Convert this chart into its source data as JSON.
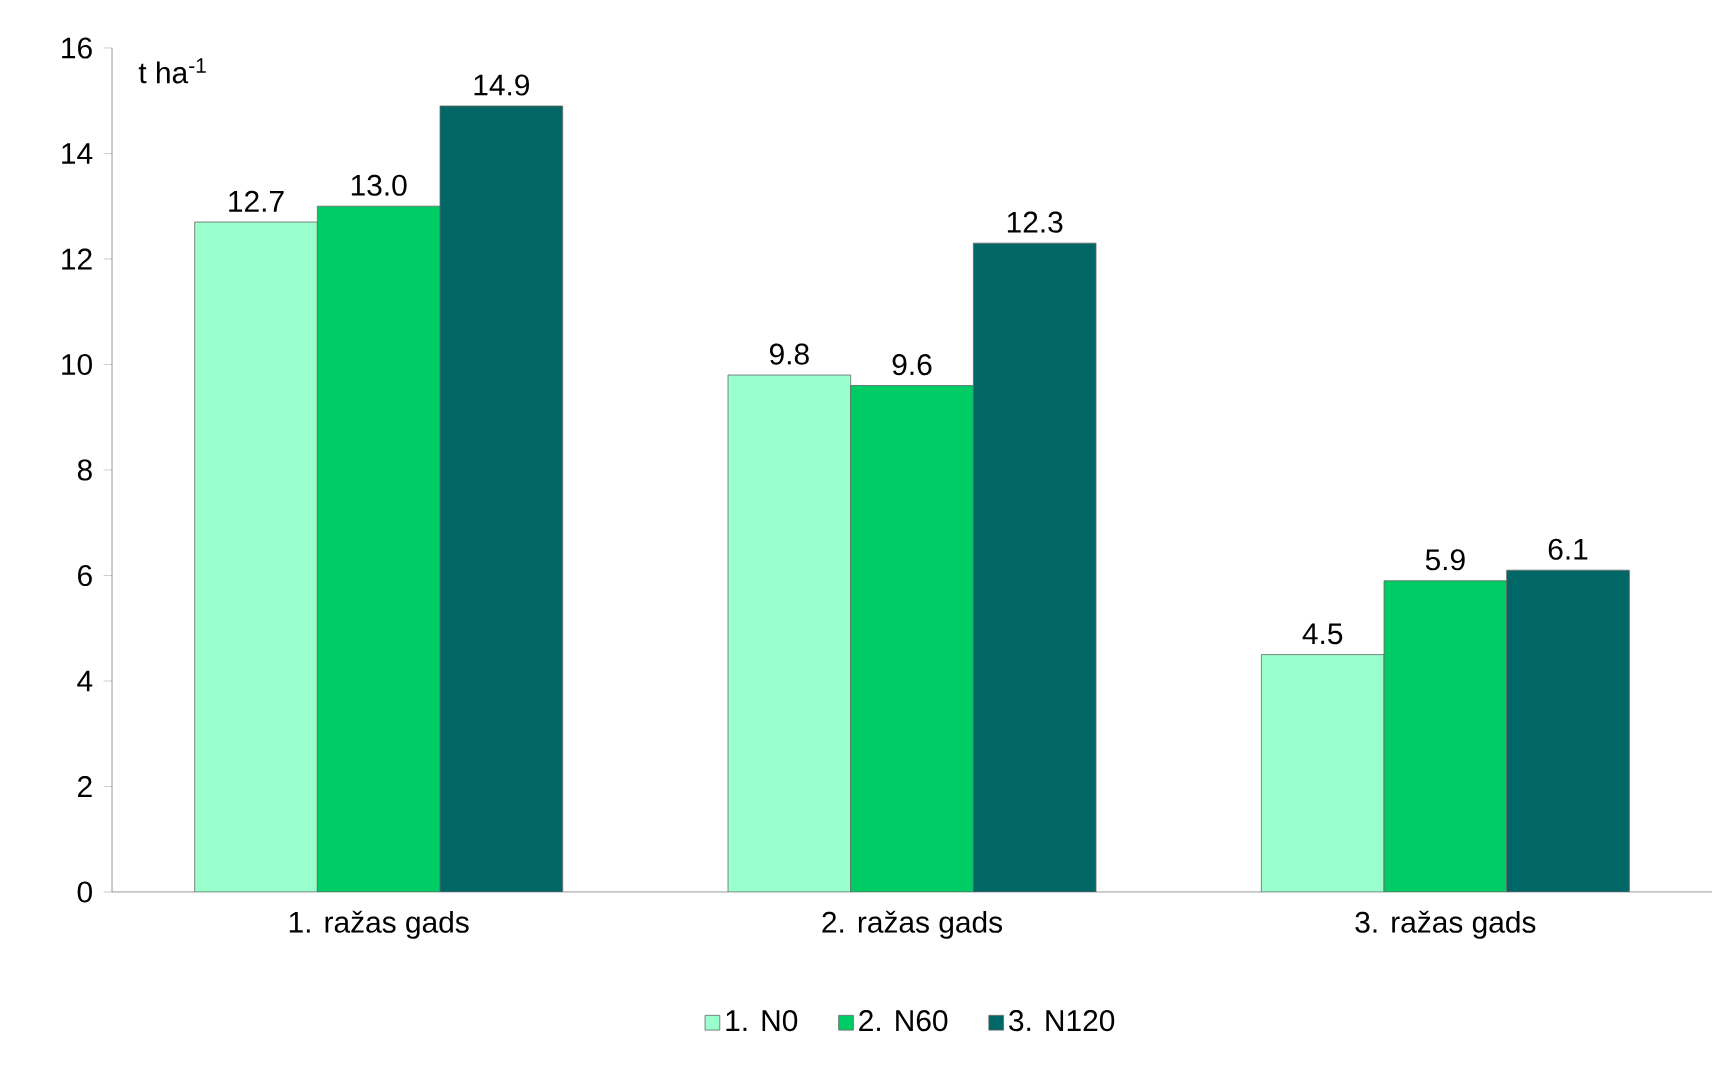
{
  "chart_data": {
    "type": "bar",
    "ylabel": "t ha$^{-1}$",
    "categories": [
      "1. ražas gads",
      "2. ražas gads",
      "3. ražas gads"
    ],
    "series": [
      {
        "name": "1. N0",
        "color": "#99ffcc",
        "values": [
          12.7,
          9.8,
          4.5
        ],
        "value_labels": [
          "12.7",
          "9.8",
          "4.5"
        ]
      },
      {
        "name": "2. N60",
        "color": "#00cc66",
        "values": [
          13.0,
          9.6,
          5.9
        ],
        "value_labels": [
          "13.0",
          "9.6",
          "5.9"
        ]
      },
      {
        "name": "3. N120",
        "color": "#006666",
        "values": [
          14.9,
          12.3,
          6.1
        ],
        "value_labels": [
          "14.9",
          "12.3",
          "6.1"
        ]
      }
    ],
    "ylim": [
      0,
      16
    ],
    "yticks": [
      0,
      2,
      4,
      6,
      8,
      10,
      12,
      14,
      16
    ],
    "legend": "bottom",
    "grid": false
  }
}
